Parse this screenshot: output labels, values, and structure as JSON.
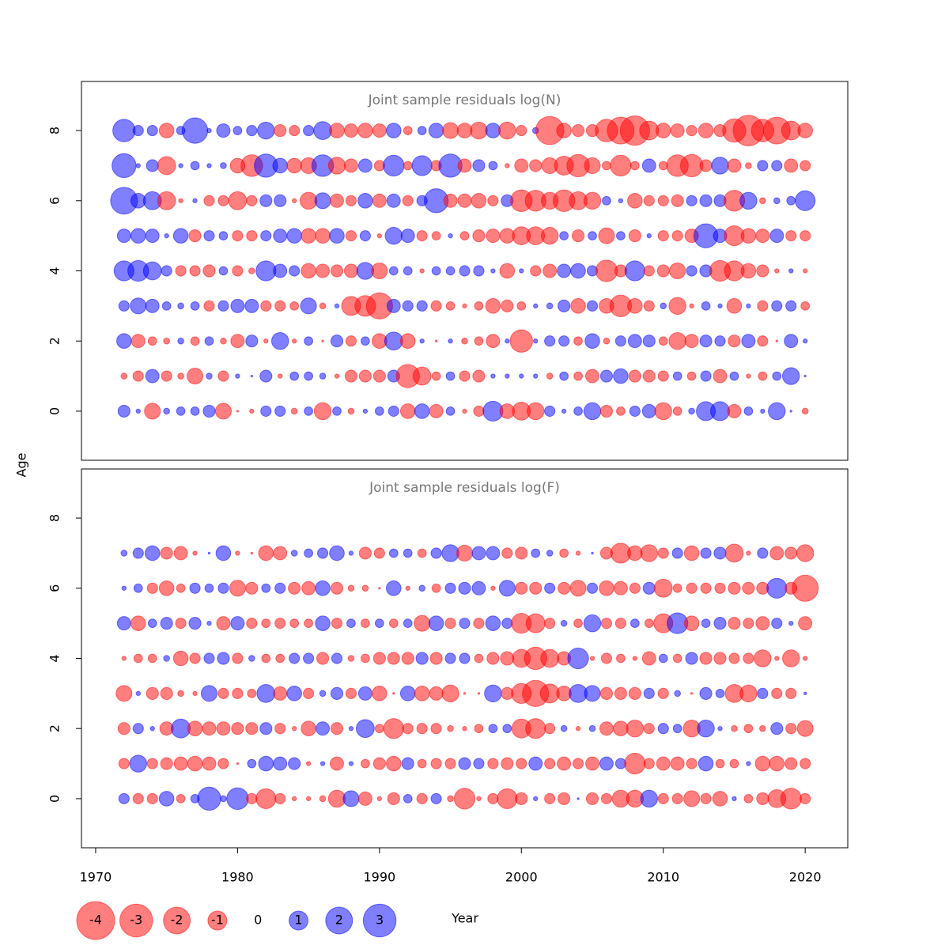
{
  "chart_data": [
    {
      "type": "bubble",
      "title": "Joint sample residuals log(N)",
      "pos_color": "#0000ff",
      "neg_color": "#ff0000",
      "x": [
        1972,
        1973,
        1974,
        1975,
        1976,
        1977,
        1978,
        1979,
        1980,
        1981,
        1982,
        1983,
        1984,
        1985,
        1986,
        1987,
        1988,
        1989,
        1990,
        1991,
        1992,
        1993,
        1994,
        1995,
        1996,
        1997,
        1998,
        1999,
        2000,
        2001,
        2002,
        2003,
        2004,
        2005,
        2006,
        2007,
        2008,
        2009,
        2010,
        2011,
        2012,
        2013,
        2014,
        2015,
        2016,
        2017,
        2018,
        2019,
        2020
      ],
      "y": [
        0,
        1,
        2,
        3,
        4,
        5,
        6,
        7,
        8
      ],
      "values": [
        [
          0.4,
          0.05,
          -0.7,
          0.1,
          0.2,
          0.2,
          0.4,
          -0.7,
          -0.01,
          -0.05,
          0.3,
          0.3,
          -0.1,
          0.2,
          -0.8,
          0.2,
          -0.1,
          0.05,
          0.2,
          0.3,
          -0.6,
          0.6,
          -0.5,
          0.2,
          -0.05,
          -0.3,
          1.1,
          -0.6,
          -0.9,
          -0.8,
          0.3,
          0.05,
          0.2,
          0.8,
          -0.4,
          -0.2,
          0.3,
          0.5,
          -0.8,
          -0.2,
          0.1,
          1.0,
          1.0,
          -0.5,
          0.2,
          0.05,
          0.8,
          0.01,
          -0.1
        ],
        [
          -0.1,
          -0.3,
          0.5,
          -0.3,
          -0.1,
          -0.7,
          0.1,
          -0.3,
          0.05,
          0.01,
          0.4,
          -0.05,
          0.2,
          0.2,
          0.1,
          -0.05,
          -0.4,
          -0.4,
          -0.4,
          0.4,
          -1.5,
          -0.9,
          -0.2,
          0.2,
          -0.3,
          -0.4,
          0.05,
          0.05,
          0.05,
          0.05,
          -0.1,
          0.2,
          -0.2,
          -0.5,
          0.4,
          0.6,
          -0.4,
          -0.4,
          -0.3,
          0.2,
          -0.2,
          0.3,
          -0.5,
          0.2,
          -0.05,
          -0.2,
          0.2,
          0.8,
          0.01
        ],
        [
          0.6,
          -0.5,
          -0.2,
          -0.1,
          0.1,
          -0.2,
          0.2,
          -0.1,
          -0.5,
          0.4,
          -0.05,
          0.8,
          -0.05,
          0.2,
          -0.01,
          0.4,
          -0.3,
          0.2,
          -0.6,
          0.9,
          -0.6,
          0.05,
          -0.01,
          0.05,
          -0.1,
          -0.2,
          -0.5,
          0.05,
          -1.4,
          0.05,
          0.3,
          0.3,
          -0.2,
          0.6,
          -0.1,
          0.3,
          0.5,
          0.4,
          -0.2,
          -0.8,
          -0.5,
          0.4,
          0.3,
          -0.4,
          0.5,
          -0.3,
          -0.01,
          0.5,
          0.05
        ],
        [
          0.3,
          0.7,
          0.5,
          0.2,
          0.1,
          0.2,
          -0.3,
          0.3,
          0.5,
          0.5,
          -0.3,
          -0.3,
          -0.2,
          0.7,
          -0.1,
          0.05,
          -1.0,
          -1.2,
          -1.9,
          0.5,
          0.3,
          0.3,
          -0.3,
          -0.2,
          -0.05,
          -0.2,
          -0.6,
          -0.4,
          -0.2,
          0.05,
          0.1,
          0.4,
          -0.6,
          0.3,
          -0.6,
          -1.3,
          -0.6,
          -0.3,
          0.1,
          -0.8,
          -0.05,
          0.2,
          0.05,
          -0.6,
          0.05,
          -0.3,
          0.3,
          0.3,
          -0.2
        ],
        [
          1.1,
          1.2,
          0.9,
          0.3,
          -0.3,
          -0.3,
          -0.4,
          0.2,
          -0.3,
          -0.1,
          1.1,
          0.5,
          0.3,
          -0.6,
          -0.5,
          -0.4,
          -0.5,
          0.8,
          -0.7,
          0.2,
          0.2,
          -0.05,
          0.2,
          0.2,
          0.3,
          0.3,
          0.05,
          -0.6,
          0.05,
          -0.3,
          -0.5,
          0.5,
          0.6,
          0.3,
          -1.3,
          -0.4,
          1.1,
          -0.3,
          -0.4,
          -0.7,
          0.3,
          0.4,
          -1.2,
          -1.1,
          -0.6,
          -0.4,
          -0.05,
          0.05,
          -0.05
        ],
        [
          0.5,
          0.6,
          0.5,
          0.05,
          0.6,
          -0.4,
          0.3,
          0.2,
          -0.3,
          -0.3,
          0.3,
          0.5,
          0.6,
          -0.6,
          -0.6,
          0.6,
          -0.3,
          0.3,
          -0.05,
          0.8,
          0.5,
          -0.3,
          -0.2,
          0.05,
          -0.2,
          -0.4,
          -0.5,
          -0.6,
          -0.9,
          -0.9,
          -0.8,
          0.2,
          -0.4,
          0.2,
          -0.7,
          0.2,
          -0.4,
          0.05,
          -0.3,
          -0.3,
          -0.5,
          1.6,
          0.5,
          -1.1,
          -0.6,
          -0.5,
          0.5,
          -0.3,
          -0.3
        ],
        [
          2.0,
          0.6,
          0.9,
          -0.9,
          -0.05,
          0.05,
          -0.3,
          -0.3,
          -0.9,
          -0.3,
          0.4,
          0.4,
          -0.05,
          -0.8,
          0.7,
          -0.5,
          -0.3,
          0.6,
          -0.5,
          0.5,
          -0.3,
          0.3,
          1.6,
          -0.5,
          -0.5,
          -0.6,
          -0.3,
          0.4,
          -1.3,
          -1.2,
          -0.8,
          -1.3,
          -0.9,
          -0.8,
          0.2,
          0.05,
          -0.6,
          -0.3,
          -0.3,
          -0.4,
          0.3,
          0.4,
          0.4,
          -1.2,
          0.8,
          -0.1,
          0.1,
          0.2,
          1.1
        ],
        [
          1.6,
          0.05,
          0.4,
          -0.9,
          0.05,
          0.2,
          0.05,
          0.1,
          -0.6,
          -1.3,
          1.5,
          0.6,
          -0.6,
          -0.7,
          1.3,
          -0.8,
          -0.5,
          0.5,
          -0.3,
          1.2,
          -0.2,
          1.1,
          -0.3,
          1.5,
          -0.5,
          0.4,
          0.2,
          -0.05,
          -0.5,
          -0.4,
          -0.7,
          -1.0,
          -1.4,
          -0.7,
          -0.2,
          -1.2,
          -0.2,
          0.5,
          -0.2,
          -1.3,
          -1.4,
          -0.4,
          0.8,
          -0.5,
          -0.1,
          0.3,
          0.3,
          -0.5,
          -0.3
        ],
        [
          1.4,
          0.3,
          0.3,
          -0.6,
          0.2,
          1.8,
          0.05,
          0.5,
          0.2,
          0.3,
          0.8,
          -0.4,
          -0.3,
          0.3,
          0.9,
          -0.6,
          -0.5,
          -0.6,
          -0.5,
          0.6,
          -0.2,
          0.2,
          0.6,
          -0.7,
          -0.6,
          -0.8,
          0.6,
          -0.8,
          -0.3,
          0.1,
          -2.2,
          -0.6,
          -0.4,
          -0.4,
          -1.4,
          -2.0,
          -2.4,
          -1.0,
          -0.6,
          -0.5,
          -0.3,
          -0.6,
          -0.4,
          -1.5,
          -2.6,
          -1.4,
          -2.0,
          -1.0,
          -0.6
        ]
      ],
      "xlim": [
        1969,
        2023
      ],
      "ylim": [
        -1.4,
        9.4
      ],
      "yticks": [
        0,
        2,
        4,
        6,
        8
      ]
    },
    {
      "type": "bubble",
      "title": "Joint sample residuals log(F)",
      "pos_color": "#0000ff",
      "neg_color": "#ff0000",
      "x": [
        1972,
        1973,
        1974,
        1975,
        1976,
        1977,
        1978,
        1979,
        1980,
        1981,
        1982,
        1983,
        1984,
        1985,
        1986,
        1987,
        1988,
        1989,
        1990,
        1991,
        1992,
        1993,
        1994,
        1995,
        1996,
        1997,
        1998,
        1999,
        2000,
        2001,
        2002,
        2003,
        2004,
        2005,
        2006,
        2007,
        2008,
        2009,
        2010,
        2011,
        2012,
        2013,
        2014,
        2015,
        2016,
        2017,
        2018,
        2019,
        2020
      ],
      "y": [
        0,
        1,
        2,
        3,
        4,
        5,
        6,
        7
      ],
      "values": [
        [
          0.3,
          -0.3,
          -0.3,
          0.6,
          -0.2,
          0.2,
          1.5,
          0.1,
          1.3,
          -0.3,
          -1.1,
          -0.3,
          -0.05,
          -0.05,
          -0.1,
          -0.8,
          0.7,
          -0.5,
          -0.05,
          -0.4,
          0.2,
          -0.3,
          0.3,
          -0.1,
          -1.2,
          -0.05,
          -0.3,
          -1.1,
          -0.4,
          0.05,
          -0.3,
          -0.4,
          0.01,
          -0.4,
          -0.3,
          -0.8,
          -0.8,
          0.8,
          -0.3,
          -0.3,
          -0.7,
          -0.3,
          -0.6,
          0.05,
          -0.2,
          -0.4,
          -0.9,
          -1.2,
          -0.3
        ],
        [
          -0.3,
          0.8,
          -0.3,
          -0.4,
          -0.5,
          -0.6,
          -0.5,
          -0.3,
          -0.01,
          0.2,
          0.6,
          0.5,
          0.4,
          -0.05,
          0.05,
          -0.5,
          0.05,
          -0.2,
          -0.4,
          -0.6,
          0.4,
          -0.2,
          -0.3,
          -0.3,
          0.4,
          0.3,
          -0.3,
          -0.4,
          -0.3,
          0.5,
          -0.3,
          -0.5,
          -0.3,
          -0.5,
          0.5,
          0.3,
          -1.2,
          -0.3,
          -0.5,
          -0.5,
          -0.3,
          0.6,
          -0.2,
          -0.2,
          0.05,
          -0.6,
          -0.6,
          -0.4,
          -0.3
        ],
        [
          -0.4,
          0.3,
          0.05,
          -0.5,
          1.0,
          -0.6,
          -0.5,
          -0.5,
          -0.4,
          -0.4,
          0.4,
          -0.3,
          -0.05,
          -0.6,
          0.5,
          -0.4,
          0.05,
          0.9,
          -0.2,
          -1.1,
          -0.3,
          -0.3,
          -0.3,
          -0.1,
          -0.05,
          -0.2,
          0.2,
          0.2,
          -1.0,
          -1.1,
          -0.3,
          0.1,
          -0.05,
          0.1,
          -0.5,
          -0.6,
          -0.8,
          -0.3,
          0.3,
          0.2,
          -0.8,
          0.8,
          0.05,
          -0.1,
          -0.2,
          -0.1,
          0.4,
          -0.3,
          -0.7
        ],
        [
          -0.7,
          0.05,
          -0.4,
          -0.4,
          -0.1,
          -0.05,
          0.7,
          -0.3,
          -0.3,
          -0.2,
          0.9,
          -0.5,
          0.6,
          -0.3,
          0.1,
          0.4,
          -0.3,
          0.5,
          -0.6,
          -0.01,
          0.6,
          -0.6,
          -0.5,
          -0.8,
          -0.01,
          -0.01,
          0.8,
          -0.4,
          -1.1,
          -1.9,
          -1.0,
          -0.6,
          0.9,
          0.7,
          -0.4,
          -0.4,
          -0.4,
          0.3,
          -0.3,
          0.1,
          -0.01,
          0.4,
          0.2,
          -0.9,
          -0.8,
          0.3,
          -0.3,
          -0.3,
          0.02
        ],
        [
          -0.05,
          -0.2,
          -0.2,
          0.1,
          -0.6,
          -0.3,
          0.3,
          0.4,
          -0.3,
          0.1,
          -0.2,
          -0.2,
          0.3,
          0.3,
          -0.4,
          0.3,
          -0.1,
          -0.2,
          -0.4,
          -0.4,
          -0.4,
          0.4,
          -0.4,
          0.3,
          0.3,
          -0.2,
          -0.4,
          -0.5,
          -0.9,
          -1.4,
          -0.9,
          -0.5,
          1.2,
          -0.05,
          -0.3,
          -0.2,
          -0.05,
          -0.5,
          0.2,
          -0.2,
          0.4,
          -0.4,
          -0.4,
          -0.3,
          -0.3,
          -0.8,
          -0.05,
          -0.8,
          -0.05
        ],
        [
          0.5,
          -0.6,
          0.2,
          0.4,
          -0.3,
          0.4,
          0.05,
          -0.5,
          0.5,
          -0.3,
          -0.2,
          -0.3,
          -0.2,
          -0.2,
          0.6,
          -0.3,
          0.2,
          -0.2,
          0.2,
          -0.2,
          0.2,
          -0.7,
          0.6,
          -0.3,
          0.3,
          -0.3,
          0.6,
          0.3,
          -1.1,
          -1.0,
          -0.3,
          0.1,
          -0.2,
          0.8,
          -0.3,
          -0.3,
          0.2,
          -0.2,
          -1.0,
          1.2,
          -0.6,
          0.2,
          0.4,
          -0.4,
          -0.3,
          -0.5,
          0.3,
          0.05,
          -0.5
        ],
        [
          0.05,
          0.2,
          -0.3,
          -0.6,
          -0.2,
          0.3,
          0.2,
          0.3,
          -0.7,
          -0.4,
          0.2,
          0.3,
          -0.4,
          -0.5,
          0.6,
          -0.4,
          -0.1,
          -0.1,
          -0.01,
          0.6,
          -0.05,
          0.1,
          -0.2,
          0.3,
          0.4,
          0.5,
          -0.05,
          0.7,
          -0.4,
          -0.4,
          0.3,
          -0.4,
          -0.7,
          0.3,
          -0.6,
          -0.5,
          -0.3,
          0.4,
          -0.9,
          -0.2,
          -0.3,
          -0.3,
          -0.3,
          -0.4,
          -0.4,
          -0.4,
          1.1,
          -0.4,
          -1.9
        ],
        [
          0.1,
          0.3,
          0.6,
          -0.4,
          -0.5,
          -0.05,
          0.01,
          0.6,
          -0.05,
          -0.01,
          -0.6,
          -0.5,
          0.1,
          0.2,
          0.3,
          0.6,
          0.05,
          -0.4,
          -0.3,
          0.2,
          0.2,
          -0.2,
          0.3,
          0.8,
          -0.7,
          0.5,
          0.5,
          -0.3,
          -0.4,
          0.2,
          0.1,
          -0.2,
          -0.05,
          0.01,
          -0.4,
          -1.1,
          -0.6,
          -0.8,
          -0.3,
          0.3,
          -0.6,
          0.3,
          0.4,
          -0.9,
          -0.05,
          0.3,
          -0.5,
          -0.4,
          -0.8
        ]
      ],
      "xlim": [
        1969,
        2023
      ],
      "ylim": [
        -1.4,
        9.4
      ],
      "yticks": [
        0,
        2,
        4,
        6,
        8
      ],
      "xticks": [
        1970,
        1980,
        1990,
        2000,
        2010,
        2020
      ]
    }
  ],
  "xlabel": "Year",
  "ylabel": "Age",
  "legend": {
    "values": [
      -4,
      -3,
      -2,
      -1,
      0,
      1,
      2,
      3
    ]
  }
}
